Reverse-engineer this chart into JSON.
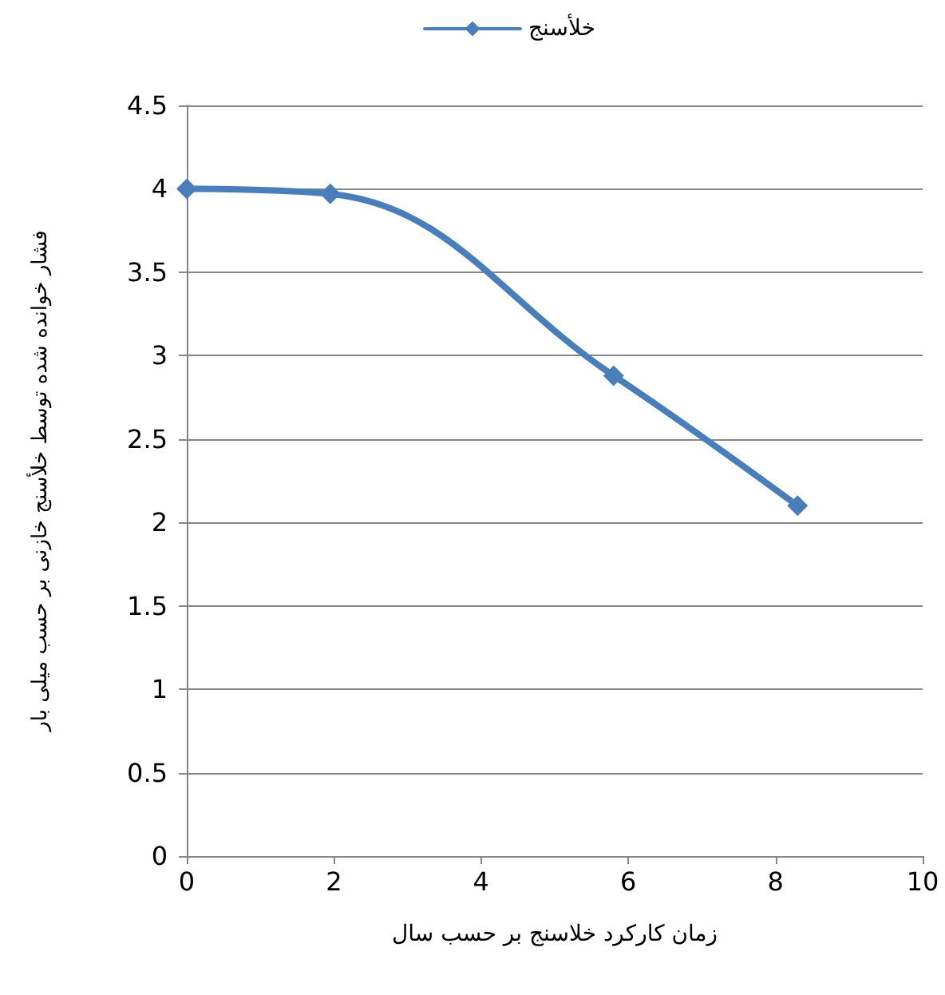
{
  "chart_data": {
    "type": "line",
    "xlabel": "زمان کارکرد خلاسنج بر حسب سال",
    "ylabel": "فشار خوانده شده توسط خلأسنج خازنی بر حسب میلی بار",
    "x": [
      0,
      1.95,
      5.8,
      8.3
    ],
    "series": [
      {
        "name": "خلأسنج",
        "color": "#4a7ebb",
        "values": [
          4.0,
          3.97,
          2.88,
          2.1
        ]
      }
    ],
    "xlim": [
      0,
      10
    ],
    "xticks": [
      0,
      2,
      4,
      6,
      8,
      10
    ],
    "ylim": [
      0,
      4.5
    ],
    "yticks": [
      0,
      0.5,
      1,
      1.5,
      2,
      2.5,
      3,
      3.5,
      4,
      4.5
    ],
    "grid": "y",
    "legend": "top",
    "marker": "diamond",
    "line_style": "solid"
  }
}
